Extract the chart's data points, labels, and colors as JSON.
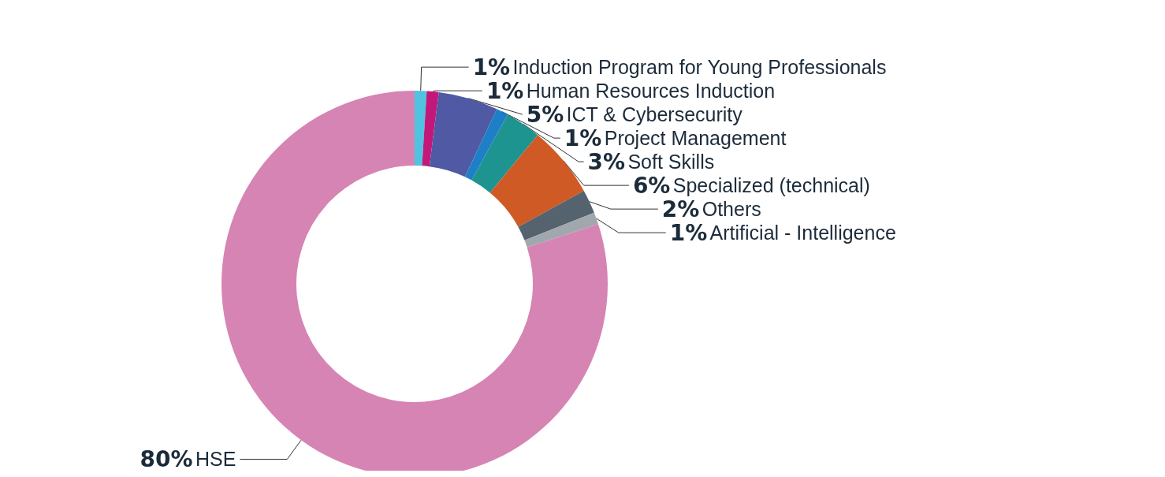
{
  "chart_data": {
    "type": "donut",
    "categories": [
      "Induction Program for Young Professionals",
      "Human Resources Induction",
      "ICT & Cybersecurity",
      "Project Management",
      "Soft Skills",
      "Specialized (technical)",
      "Others",
      "Artificial - Intelligence",
      "HSE"
    ],
    "values": [
      1,
      1,
      5,
      1,
      3,
      6,
      2,
      1,
      80
    ],
    "value_labels": [
      "1%",
      "1%",
      "5%",
      "1%",
      "3%",
      "6%",
      "2%",
      "1%",
      "80%"
    ],
    "colors": [
      "#4fc3e0",
      "#c2187a",
      "#5059a3",
      "#1e7fc8",
      "#1e9490",
      "#d05a25",
      "#55636e",
      "#a0a8ad",
      "#d684b4"
    ],
    "legend": false
  }
}
